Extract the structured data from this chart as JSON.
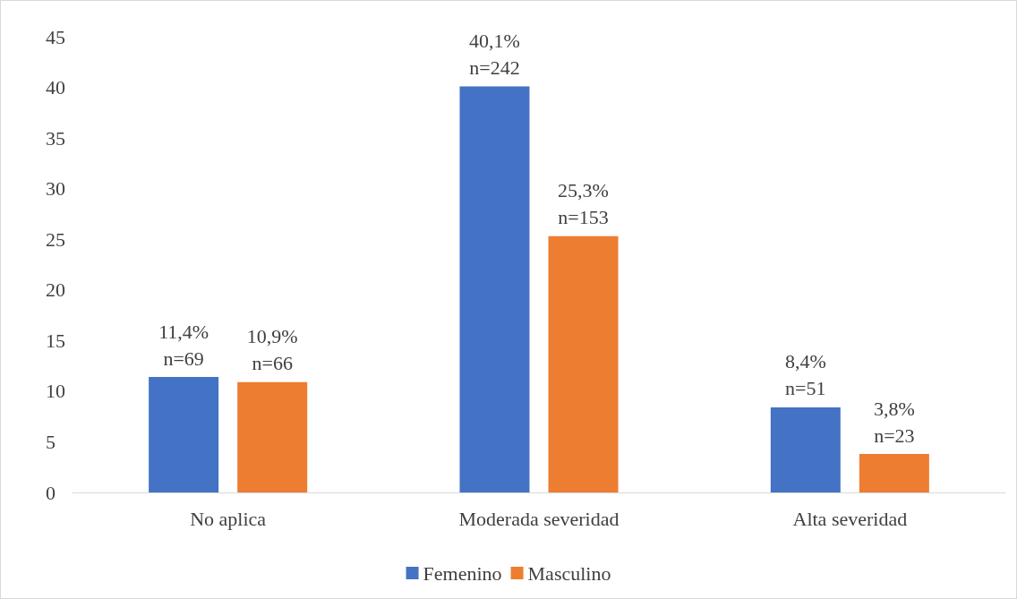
{
  "chart_data": {
    "type": "bar",
    "categories": [
      "No aplica",
      "Moderada severidad",
      "Alta severidad"
    ],
    "series": [
      {
        "name": "Femenino",
        "color": "#4472c4",
        "values": [
          11.4,
          40.1,
          8.4
        ],
        "value_labels": [
          "11,4%\nn=69",
          "40,1%\nn=242",
          "8,4%\nn=51"
        ]
      },
      {
        "name": "Masculino",
        "color": "#ed7d31",
        "values": [
          10.9,
          25.3,
          3.8
        ],
        "value_labels": [
          "10,9%\nn=66",
          "25,3%\nn=153",
          "3,8%\nn=23"
        ]
      }
    ],
    "ylim": [
      0,
      45
    ],
    "yticks": [
      0,
      5,
      10,
      15,
      20,
      25,
      30,
      35,
      40,
      45
    ],
    "grid": false,
    "legend": "bottom"
  }
}
